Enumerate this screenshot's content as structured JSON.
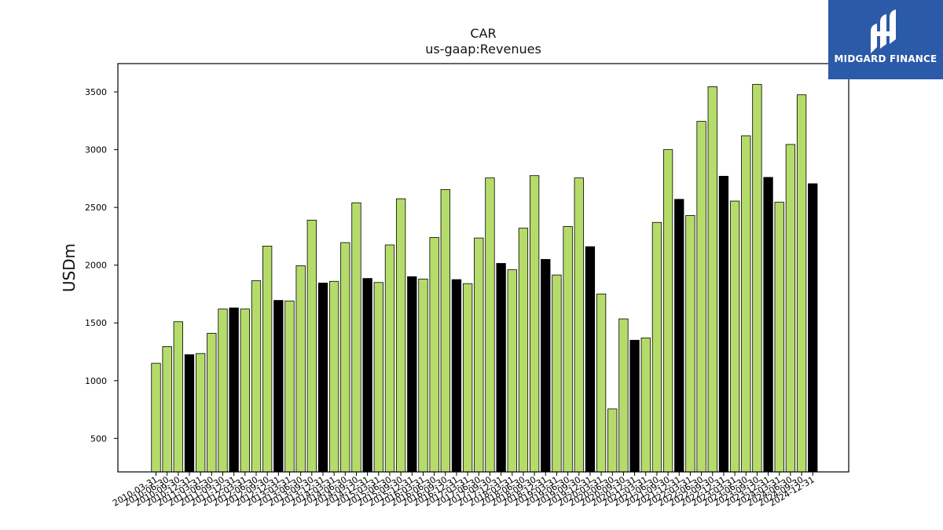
{
  "brand": {
    "name": "MIDGARD FINANCE",
    "accent": "#2a5aa8"
  },
  "colors": {
    "regular": "#b5dc6a",
    "highlight": "#000000",
    "edge": "#000000"
  },
  "chart_data": {
    "type": "bar",
    "title": "CAR",
    "subtitle": "us-gaap:Revenues",
    "xlabel": "",
    "ylabel": "USDm",
    "ylim": [
      210,
      3745
    ],
    "yticks": [
      500,
      1000,
      1500,
      2000,
      2500,
      3000,
      3500
    ],
    "grid": false,
    "legend": "none",
    "categories": [
      "2010-03-31",
      "2010-06-30",
      "2010-09-30",
      "2010-12-31",
      "2011-03-31",
      "2011-06-30",
      "2011-09-30",
      "2011-12-31",
      "2012-03-31",
      "2012-06-30",
      "2012-09-30",
      "2012-12-31",
      "2013-03-31",
      "2013-06-30",
      "2013-09-30",
      "2013-12-31",
      "2014-03-31",
      "2014-06-30",
      "2014-09-30",
      "2014-12-31",
      "2015-03-31",
      "2015-06-30",
      "2015-09-30",
      "2015-12-31",
      "2016-03-31",
      "2016-06-30",
      "2016-09-30",
      "2016-12-31",
      "2017-03-31",
      "2017-06-30",
      "2017-09-30",
      "2017-12-31",
      "2018-03-31",
      "2018-06-30",
      "2018-09-30",
      "2018-12-31",
      "2019-03-31",
      "2019-06-30",
      "2019-09-30",
      "2019-12-31",
      "2020-03-31",
      "2020-06-30",
      "2020-09-30",
      "2020-12-31",
      "2021-03-31",
      "2021-06-30",
      "2021-09-30",
      "2021-12-31",
      "2022-03-31",
      "2022-06-30",
      "2022-09-30",
      "2022-12-31",
      "2023-03-31",
      "2023-06-30",
      "2023-09-30",
      "2023-12-31",
      "2024-03-31",
      "2024-06-30",
      "2024-09-30",
      "2024-12-31"
    ],
    "values": [
      1150,
      1295,
      1510,
      1225,
      1235,
      1410,
      1620,
      1630,
      1620,
      1865,
      2165,
      1695,
      1690,
      1995,
      2390,
      1845,
      1860,
      2195,
      2540,
      1885,
      1850,
      2175,
      2575,
      1900,
      1880,
      2240,
      2655,
      1875,
      1840,
      2235,
      2755,
      2015,
      1960,
      2320,
      2775,
      2050,
      1915,
      2335,
      2755,
      2160,
      1750,
      755,
      1535,
      1350,
      1370,
      2370,
      3000,
      2570,
      2430,
      3245,
      3545,
      2770,
      2555,
      3120,
      3565,
      2760,
      2545,
      3045,
      3475,
      2705
    ],
    "highlight": [
      false,
      false,
      false,
      true,
      false,
      false,
      false,
      true,
      false,
      false,
      false,
      true,
      false,
      false,
      false,
      true,
      false,
      false,
      false,
      true,
      false,
      false,
      false,
      true,
      false,
      false,
      false,
      true,
      false,
      false,
      false,
      true,
      false,
      false,
      false,
      true,
      false,
      false,
      false,
      true,
      false,
      false,
      false,
      true,
      false,
      false,
      false,
      true,
      false,
      false,
      false,
      true,
      false,
      false,
      false,
      true,
      false,
      false,
      false,
      true
    ]
  }
}
